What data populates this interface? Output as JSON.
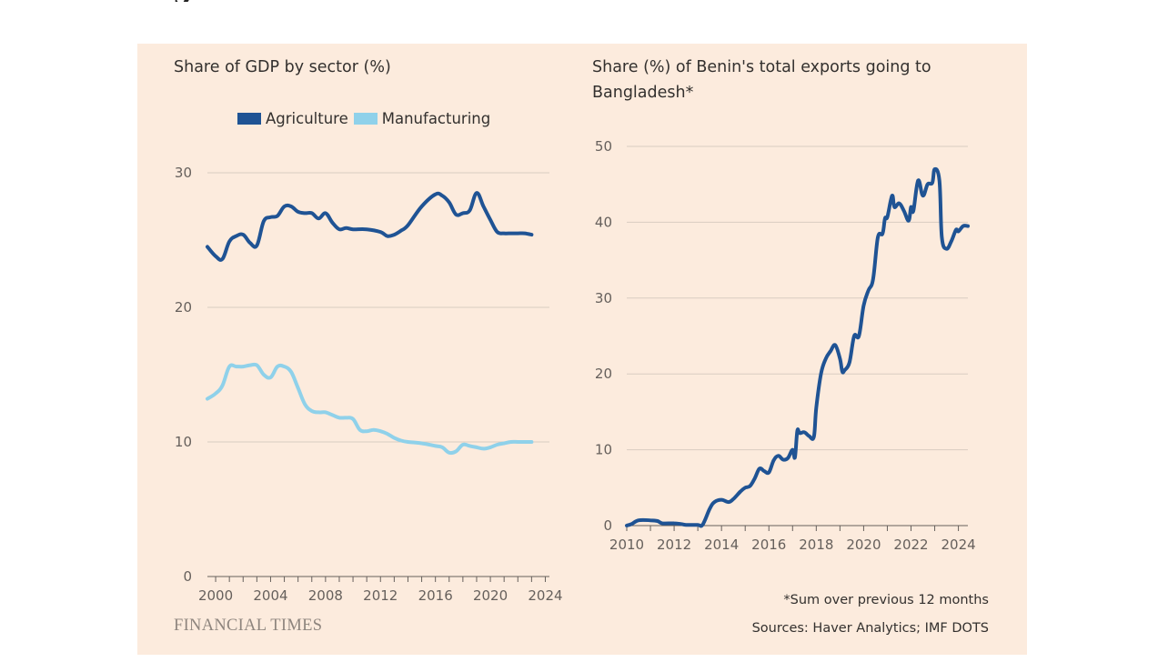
{
  "page": {
    "fragment_text": "gh"
  },
  "colors": {
    "background": "#fcebdd",
    "agriculture": "#1f5394",
    "manufacturing": "#8fd1ea",
    "benin": "#1f5394",
    "grid": "#d9ccc1",
    "tick": "#66605c"
  },
  "footnote": "*Sum over previous 12 months",
  "sources": "Sources: Haver Analytics; IMF DOTS",
  "logo": "FINANCIAL TIMES",
  "chart_data": [
    {
      "type": "line",
      "title": "Share of GDP by sector (%)",
      "xlabel": "",
      "ylabel": "",
      "ylim": [
        0,
        30
      ],
      "xlim": [
        1999.4,
        2024.3
      ],
      "yticks": [
        "0",
        "10",
        "20",
        "30"
      ],
      "xticks": [
        "2000",
        "2004",
        "2008",
        "2012",
        "2016",
        "2020",
        "2024"
      ],
      "legend": "top",
      "grid": true,
      "series": [
        {
          "name": "Agriculture",
          "x": [
            1999.4,
            2000,
            2000.5,
            2001,
            2001.5,
            2002,
            2002.5,
            2003,
            2003.5,
            2004,
            2004.5,
            2005,
            2005.5,
            2006,
            2006.5,
            2007,
            2007.5,
            2008,
            2008.5,
            2009,
            2009.5,
            2010,
            2011,
            2012,
            2012.5,
            2013,
            2013.5,
            2014,
            2015,
            2016,
            2016.5,
            2017,
            2017.5,
            2018,
            2018.5,
            2019,
            2019.5,
            2020,
            2020.5,
            2021,
            2021.5,
            2022,
            2022.5,
            2023
          ],
          "values": [
            24.5,
            23.8,
            23.6,
            24.9,
            25.3,
            25.4,
            24.8,
            24.6,
            26.4,
            26.7,
            26.8,
            27.5,
            27.5,
            27.1,
            27.0,
            27.0,
            26.6,
            27.0,
            26.3,
            25.8,
            25.9,
            25.8,
            25.8,
            25.6,
            25.3,
            25.4,
            25.7,
            26.1,
            27.5,
            28.4,
            28.3,
            27.8,
            26.9,
            27.0,
            27.2,
            28.5,
            27.5,
            26.5,
            25.6,
            25.5,
            25.5,
            25.5,
            25.5,
            25.4
          ]
        },
        {
          "name": "Manufacturing",
          "x": [
            1999.4,
            2000,
            2000.5,
            2001,
            2001.5,
            2002,
            2002.5,
            2003,
            2003.5,
            2004,
            2004.5,
            2005,
            2005.5,
            2006,
            2006.5,
            2007,
            2007.5,
            2008,
            2008.5,
            2009,
            2009.5,
            2010,
            2010.5,
            2011,
            2011.5,
            2012,
            2012.5,
            2013,
            2013.5,
            2014,
            2015,
            2016,
            2016.5,
            2017,
            2017.5,
            2018,
            2018.5,
            2019,
            2019.5,
            2020,
            2020.5,
            2021,
            2021.5,
            2022,
            2022.5,
            2023
          ],
          "values": [
            13.2,
            13.6,
            14.2,
            15.6,
            15.6,
            15.6,
            15.7,
            15.7,
            15.0,
            14.8,
            15.6,
            15.6,
            15.2,
            14.0,
            12.8,
            12.3,
            12.2,
            12.2,
            12.0,
            11.8,
            11.8,
            11.7,
            10.9,
            10.8,
            10.9,
            10.8,
            10.6,
            10.3,
            10.1,
            10.0,
            9.9,
            9.7,
            9.6,
            9.2,
            9.3,
            9.8,
            9.7,
            9.6,
            9.5,
            9.6,
            9.8,
            9.9,
            10.0,
            10.0,
            10.0,
            10.0
          ]
        }
      ]
    },
    {
      "type": "line",
      "title": "Share (%) of Benin's total exports going to Bangladesh*",
      "xlabel": "",
      "ylabel": "",
      "ylim": [
        0,
        50
      ],
      "xlim": [
        2010,
        2024.4
      ],
      "yticks": [
        "0",
        "10",
        "20",
        "30",
        "40",
        "50"
      ],
      "xticks": [
        "2010",
        "2012",
        "2014",
        "2016",
        "2018",
        "2020",
        "2022",
        "2024"
      ],
      "grid": true,
      "series": [
        {
          "name": "",
          "x": [
            2010,
            2010.2,
            2010.5,
            2011,
            2011.3,
            2011.5,
            2012,
            2012.3,
            2012.5,
            2013,
            2013.2,
            2013.5,
            2013.7,
            2014,
            2014.3,
            2014.5,
            2014.8,
            2015,
            2015.2,
            2015.4,
            2015.6,
            2015.8,
            2016,
            2016.2,
            2016.4,
            2016.6,
            2016.8,
            2017,
            2017.1,
            2017.2,
            2017.3,
            2017.5,
            2017.7,
            2017.9,
            2018,
            2018.2,
            2018.4,
            2018.6,
            2018.8,
            2019,
            2019.1,
            2019.2,
            2019.4,
            2019.6,
            2019.8,
            2020,
            2020.2,
            2020.4,
            2020.6,
            2020.8,
            2020.9,
            2021,
            2021.2,
            2021.3,
            2021.5,
            2021.7,
            2021.9,
            2022,
            2022.1,
            2022.3,
            2022.5,
            2022.7,
            2022.9,
            2023,
            2023.2,
            2023.3,
            2023.5,
            2023.7,
            2023.9,
            2024,
            2024.2,
            2024.4
          ],
          "values": [
            0,
            0.2,
            0.7,
            0.7,
            0.6,
            0.3,
            0.3,
            0.2,
            0.1,
            0.1,
            0.1,
            2.2,
            3.1,
            3.4,
            3.1,
            3.5,
            4.5,
            5.0,
            5.2,
            6.2,
            7.5,
            7.2,
            7.0,
            8.6,
            9.2,
            8.7,
            8.9,
            10.0,
            9.0,
            12.5,
            12.2,
            12.3,
            11.8,
            11.7,
            15.5,
            20.0,
            22.0,
            23.0,
            23.8,
            22.0,
            20.3,
            20.5,
            21.5,
            25.0,
            25.0,
            29.0,
            31.0,
            32.5,
            38.0,
            38.5,
            40.5,
            40.7,
            43.5,
            42.0,
            42.5,
            41.5,
            40.2,
            42.0,
            41.5,
            45.5,
            43.5,
            45.0,
            45.2,
            47.0,
            45.5,
            38.0,
            36.5,
            37.5,
            39.0,
            38.8,
            39.5,
            39.5
          ]
        }
      ]
    }
  ]
}
